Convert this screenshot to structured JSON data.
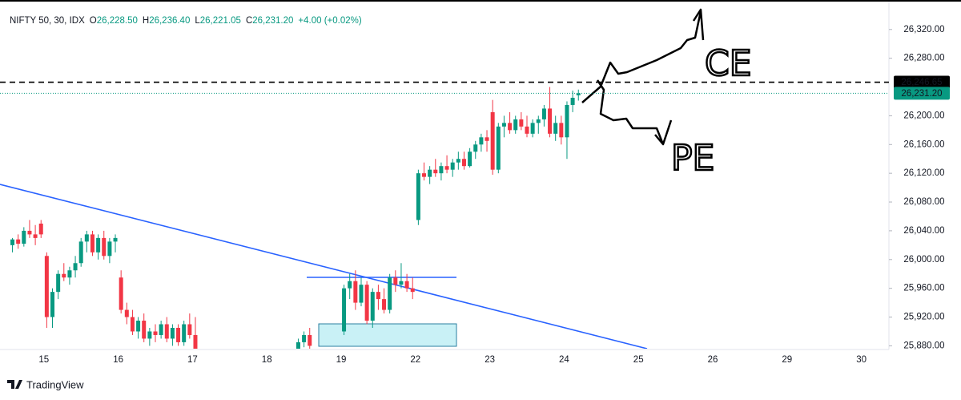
{
  "chart_data": {
    "type": "candlestick",
    "title": "NIFTY 50, 30, IDX",
    "ohlc": [
      {
        "key": "O",
        "label": "26,228.50"
      },
      {
        "key": "H",
        "label": "26,236.40"
      },
      {
        "key": "L",
        "label": "26,221.05"
      },
      {
        "key": "C",
        "label": "26,231.20"
      }
    ],
    "change": "+4.00 (+0.02%)",
    "up_color": "#089981",
    "down_color": "#f23645",
    "grid": false,
    "ylim": [
      25876,
      26361
    ],
    "yticks": [
      {
        "value": 25880,
        "label": "25,880.00"
      },
      {
        "value": 25920,
        "label": "25,920.00"
      },
      {
        "value": 25960,
        "label": "25,960.00"
      },
      {
        "value": 26000,
        "label": "26,000.00"
      },
      {
        "value": 26040,
        "label": "26,040.00"
      },
      {
        "value": 26080,
        "label": "26,080.00"
      },
      {
        "value": 26120,
        "label": "26,120.00"
      },
      {
        "value": 26160,
        "label": "26,160.00"
      },
      {
        "value": 26200,
        "label": "26,200.00"
      },
      {
        "value": 26280,
        "label": "26,280.00"
      },
      {
        "value": 26320,
        "label": "26,320.00"
      }
    ],
    "levels": [
      {
        "value": 26246.65,
        "label": "26,246.65",
        "color": "#000000",
        "style": "dashed"
      },
      {
        "value": 26231.2,
        "label": "26,231.20",
        "color": "#089981",
        "style": "dotted"
      }
    ],
    "days": [
      null,
      "15",
      "16",
      "17",
      "18",
      "19",
      "22",
      "23",
      "24",
      "25",
      "26",
      "29",
      "30"
    ],
    "day_candles": [
      [
        null,
        null,
        null,
        null,
        null,
        null,
        null,
        [
          26020,
          26030,
          26010,
          26028
        ],
        [
          26028,
          26035,
          26015,
          26022
        ],
        [
          26022,
          26045,
          26018,
          26040
        ],
        [
          26040,
          26055,
          26030,
          26035
        ],
        [
          26035,
          26048,
          26020,
          26030
        ],
        [
          26050,
          26055,
          26030,
          26035
        ]
      ],
      [
        [
          26005,
          26010,
          25905,
          25920
        ],
        [
          25920,
          25960,
          25905,
          25955
        ],
        [
          25955,
          25985,
          25945,
          25980
        ],
        [
          25980,
          25995,
          25970,
          25975
        ],
        [
          25975,
          25990,
          25965,
          25985
        ],
        [
          25985,
          26005,
          25975,
          25995
        ],
        [
          25995,
          26030,
          25990,
          26025
        ],
        [
          26025,
          26040,
          26010,
          26035
        ],
        [
          26035,
          26040,
          26005,
          26010
        ],
        [
          26010,
          26035,
          26000,
          26030
        ],
        [
          26030,
          26040,
          26000,
          26005
        ],
        [
          26005,
          26030,
          25995,
          26025
        ],
        [
          26025,
          26035,
          26010,
          26030
        ]
      ],
      [
        [
          25975,
          25985,
          25925,
          25930
        ],
        [
          25930,
          25940,
          25910,
          25920
        ],
        [
          25920,
          25930,
          25895,
          25900
        ],
        [
          25900,
          25920,
          25890,
          25915
        ],
        [
          25915,
          25925,
          25885,
          25890
        ],
        [
          25890,
          25905,
          25880,
          25900
        ],
        [
          25900,
          25910,
          25885,
          25895
        ],
        [
          25895,
          25915,
          25890,
          25910
        ],
        [
          25910,
          25920,
          25885,
          25890
        ],
        [
          25890,
          25910,
          25880,
          25905
        ],
        [
          25905,
          25910,
          25880,
          25885
        ],
        [
          25885,
          25915,
          25880,
          25910
        ],
        [
          25910,
          25925,
          25890,
          25895
        ]
      ],
      [
        [
          25895,
          25920,
          25870,
          25875
        ],
        null,
        null,
        null,
        null,
        null,
        null,
        null,
        null,
        null,
        null,
        null,
        null
      ],
      [
        null,
        null,
        null,
        null,
        null,
        [
          25870,
          25890,
          25865,
          25885
        ],
        [
          25885,
          25900,
          25878,
          25895
        ],
        [
          25895,
          25905,
          25875,
          25880
        ],
        null,
        null,
        null,
        null,
        null
      ],
      [
        [
          25900,
          25965,
          25895,
          25960
        ],
        [
          25960,
          25980,
          25945,
          25970
        ],
        [
          25970,
          25985,
          25930,
          25940
        ],
        [
          25940,
          25975,
          25935,
          25965
        ],
        [
          25965,
          25970,
          25910,
          25915
        ],
        [
          25915,
          25960,
          25905,
          25955
        ],
        [
          25955,
          25965,
          25930,
          25945
        ],
        [
          25945,
          25960,
          25925,
          25930
        ],
        [
          25930,
          25980,
          25925,
          25975
        ],
        [
          25975,
          25985,
          25955,
          25965
        ],
        [
          25965,
          25995,
          25960,
          25970
        ],
        [
          25970,
          25980,
          25955,
          25960
        ],
        [
          25960,
          25975,
          25945,
          25955
        ]
      ],
      [
        [
          26055,
          26125,
          26048,
          26120
        ],
        [
          26120,
          26135,
          26110,
          26115
        ],
        [
          26115,
          26130,
          26105,
          26125
        ],
        [
          26125,
          26140,
          26115,
          26120
        ],
        [
          26120,
          26135,
          26110,
          26130
        ],
        [
          26130,
          26145,
          26120,
          26125
        ],
        [
          26125,
          26140,
          26115,
          26135
        ],
        [
          26135,
          26150,
          26125,
          26140
        ],
        [
          26140,
          26150,
          26125,
          26130
        ],
        [
          26130,
          26155,
          26128,
          26150
        ],
        [
          26150,
          26165,
          26140,
          26160
        ],
        [
          26160,
          26175,
          26150,
          26170
        ],
        [
          26170,
          26180,
          26150,
          26165
        ]
      ],
      [
        [
          26205,
          26222,
          26118,
          26125
        ],
        [
          26125,
          26190,
          26120,
          26185
        ],
        [
          26185,
          26200,
          26170,
          26190
        ],
        [
          26190,
          26205,
          26175,
          26180
        ],
        [
          26180,
          26200,
          26175,
          26195
        ],
        [
          26195,
          26205,
          26180,
          26185
        ],
        [
          26185,
          26200,
          26170,
          26175
        ],
        [
          26175,
          26195,
          26170,
          26190
        ],
        [
          26190,
          26200,
          26175,
          26195
        ],
        [
          26195,
          26215,
          26185,
          26210
        ],
        [
          26210,
          26240,
          26170,
          26175
        ],
        [
          26175,
          26200,
          26165,
          26190
        ],
        [
          26190,
          26200,
          26160,
          26170
        ]
      ],
      [
        [
          26170,
          26220,
          26140,
          26215
        ],
        [
          26215,
          26235,
          26205,
          26225
        ],
        [
          26228.5,
          26236.4,
          26221.05,
          26231.2
        ]
      ],
      [],
      [],
      [],
      []
    ],
    "annotations": [
      "CE",
      "PE"
    ],
    "footer": "TradingView"
  }
}
